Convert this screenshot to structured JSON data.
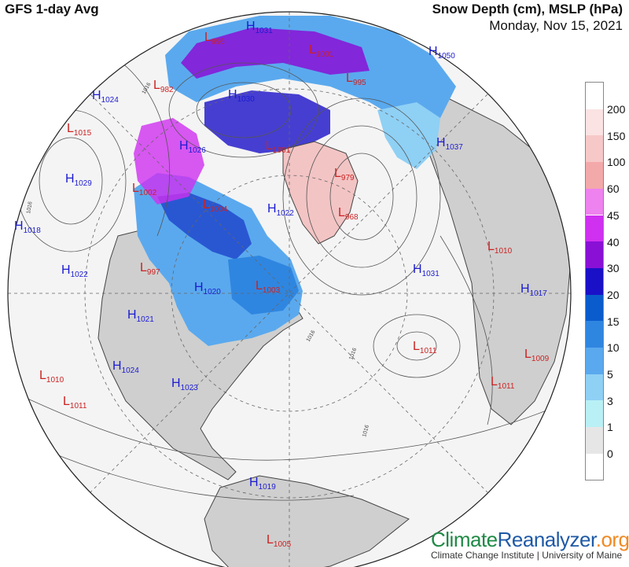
{
  "header": {
    "model": "GFS 1-day Avg",
    "variable": "Snow Depth (cm), MSLP (hPa)",
    "date": "Monday, Nov 15, 2021"
  },
  "legend": {
    "levels": [
      {
        "label": "200",
        "color": "#ffffff"
      },
      {
        "label": "150",
        "color": "#fbe3e3"
      },
      {
        "label": "100",
        "color": "#f7c8c8"
      },
      {
        "label": "60",
        "color": "#f3a9a9"
      },
      {
        "label": "45",
        "color": "#ee82ee"
      },
      {
        "label": "40",
        "color": "#d030f0"
      },
      {
        "label": "30",
        "color": "#8a10d6"
      },
      {
        "label": "20",
        "color": "#1a10c8"
      },
      {
        "label": "15",
        "color": "#0a5ccc"
      },
      {
        "label": "10",
        "color": "#2f86e0"
      },
      {
        "label": "5",
        "color": "#5aa9ee"
      },
      {
        "label": "3",
        "color": "#8fd0f5"
      },
      {
        "label": "1",
        "color": "#b9f0f5"
      },
      {
        "label": "0",
        "color": "#e6e6e6"
      }
    ],
    "bottom_color": "#ffffff"
  },
  "pressure_centers": [
    {
      "type": "L",
      "value": "996",
      "color": "#cc2222"
    },
    {
      "type": "H",
      "value": "1031",
      "color": "#1c1cd0"
    },
    {
      "type": "L",
      "value": "1001",
      "color": "#cc2222"
    },
    {
      "type": "H",
      "value": "1050",
      "color": "#1c1cd0"
    },
    {
      "type": "L",
      "value": "995",
      "color": "#cc2222"
    },
    {
      "type": "L",
      "value": "982",
      "color": "#cc2222"
    },
    {
      "type": "H",
      "value": "1024",
      "color": "#1c1cd0"
    },
    {
      "type": "H",
      "value": "1030",
      "color": "#1c1cd0"
    },
    {
      "type": "L",
      "value": "1015",
      "color": "#cc2222"
    },
    {
      "type": "H",
      "value": "1026",
      "color": "#1c1cd0"
    },
    {
      "type": "L",
      "value": "1001",
      "color": "#cc2222"
    },
    {
      "type": "H",
      "value": "1037",
      "color": "#1c1cd0"
    },
    {
      "type": "H",
      "value": "1029",
      "color": "#1c1cd0"
    },
    {
      "type": "L",
      "value": "1002",
      "color": "#cc2222"
    },
    {
      "type": "L",
      "value": "979",
      "color": "#cc2222"
    },
    {
      "type": "L",
      "value": "1004",
      "color": "#cc2222"
    },
    {
      "type": "H",
      "value": "1022",
      "color": "#1c1cd0"
    },
    {
      "type": "L",
      "value": "968",
      "color": "#cc2222"
    },
    {
      "type": "H",
      "value": "1018",
      "color": "#1c1cd0"
    },
    {
      "type": "L",
      "value": "1010",
      "color": "#cc2222"
    },
    {
      "type": "H",
      "value": "1022",
      "color": "#1c1cd0"
    },
    {
      "type": "L",
      "value": "997",
      "color": "#cc2222"
    },
    {
      "type": "H",
      "value": "1031",
      "color": "#1c1cd0"
    },
    {
      "type": "H",
      "value": "1020",
      "color": "#1c1cd0"
    },
    {
      "type": "L",
      "value": "1003",
      "color": "#cc2222"
    },
    {
      "type": "H",
      "value": "1017",
      "color": "#1c1cd0"
    },
    {
      "type": "H",
      "value": "1021",
      "color": "#1c1cd0"
    },
    {
      "type": "L",
      "value": "1011",
      "color": "#cc2222"
    },
    {
      "type": "L",
      "value": "1009",
      "color": "#cc2222"
    },
    {
      "type": "H",
      "value": "1024",
      "color": "#1c1cd0"
    },
    {
      "type": "L",
      "value": "1010",
      "color": "#cc2222"
    },
    {
      "type": "H",
      "value": "1023",
      "color": "#1c1cd0"
    },
    {
      "type": "L",
      "value": "1011",
      "color": "#cc2222"
    },
    {
      "type": "L",
      "value": "1011",
      "color": "#cc2222"
    },
    {
      "type": "H",
      "value": "1019",
      "color": "#1c1cd0"
    },
    {
      "type": "L",
      "value": "1005",
      "color": "#cc2222"
    }
  ],
  "isobar_labels": [
    "1016",
    "1016",
    "1016",
    "1016",
    "1016"
  ],
  "brand": {
    "part1": "Climate",
    "part2": "Reanalyzer",
    "part3": ".org"
  },
  "credit": "Climate Change Institute | University of Maine",
  "colors": {
    "ocean": "#f4f4f4",
    "land": "#cfcfcf",
    "land_border": "#444444",
    "globe_outline": "#222222",
    "isobar": "#555555"
  }
}
